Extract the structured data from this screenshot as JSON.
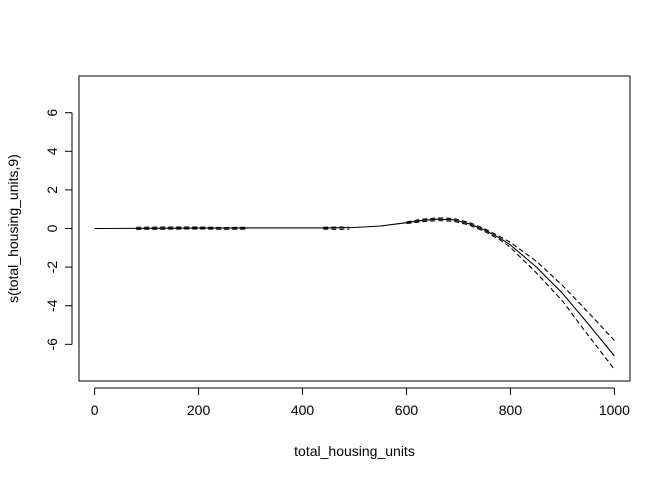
{
  "chart_data": {
    "type": "line",
    "title": "",
    "xlabel": "total_housing_units",
    "ylabel": "s(total_housing_units,9)",
    "xlim": [
      -30,
      1030
    ],
    "ylim": [
      -7.9,
      7.9
    ],
    "x_ticks": [
      0,
      200,
      400,
      600,
      800,
      1000
    ],
    "x_tick_labels": [
      "0",
      "200",
      "400",
      "600",
      "800",
      "1000"
    ],
    "y_ticks": [
      -6,
      -4,
      -2,
      0,
      2,
      4,
      6
    ],
    "y_tick_labels": [
      "-6",
      "-4",
      "-2",
      "0",
      "2",
      "4",
      "6"
    ],
    "grid": false,
    "series": [
      {
        "style": "solid",
        "color": "#000000",
        "x": [
          0,
          100,
          200,
          300,
          400,
          450,
          500,
          550,
          600,
          630,
          660,
          690,
          720,
          750,
          780,
          800,
          850,
          900,
          950,
          1000
        ],
        "y": [
          0,
          0.01,
          0.02,
          0.03,
          0.03,
          0.03,
          0.05,
          0.13,
          0.3,
          0.42,
          0.48,
          0.45,
          0.25,
          -0.08,
          -0.5,
          -0.85,
          -2.0,
          -3.35,
          -4.95,
          -6.6
        ]
      },
      {
        "style": "dashed",
        "color": "#000000",
        "x": [
          80,
          150,
          200,
          250,
          290
        ],
        "y": [
          0.06,
          0.08,
          0.07,
          0.05,
          0.06
        ]
      },
      {
        "style": "dashed",
        "color": "#000000",
        "x": [
          80,
          150,
          200,
          250,
          290
        ],
        "y": [
          -0.04,
          -0.03,
          -0.02,
          -0.04,
          -0.03
        ]
      },
      {
        "style": "dashed",
        "color": "#000000",
        "x": [
          440,
          470,
          490
        ],
        "y": [
          0.06,
          0.07,
          0.06
        ]
      },
      {
        "style": "dashed",
        "color": "#000000",
        "x": [
          440,
          470,
          490
        ],
        "y": [
          -0.03,
          -0.04,
          -0.03
        ]
      },
      {
        "style": "dashed",
        "color": "#000000",
        "x": [
          600,
          630,
          660,
          690,
          720,
          750,
          780,
          800,
          850,
          900,
          950,
          1000
        ],
        "y": [
          0.34,
          0.48,
          0.55,
          0.52,
          0.32,
          -0.01,
          -0.42,
          -0.72,
          -1.7,
          -2.95,
          -4.35,
          -5.8
        ]
      },
      {
        "style": "dashed",
        "color": "#000000",
        "x": [
          600,
          630,
          660,
          690,
          720,
          750,
          780,
          800,
          850,
          900,
          950,
          1000
        ],
        "y": [
          0.26,
          0.36,
          0.41,
          0.38,
          0.18,
          -0.15,
          -0.58,
          -0.98,
          -2.3,
          -3.75,
          -5.55,
          -7.3
        ]
      }
    ]
  }
}
